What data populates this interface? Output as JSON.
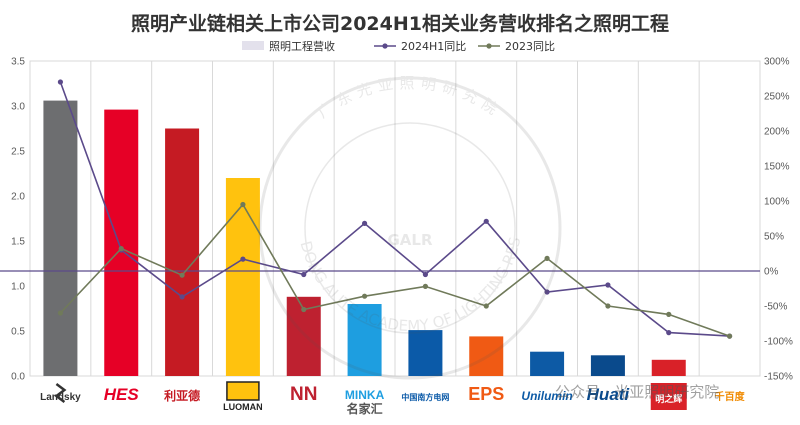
{
  "chart_data": {
    "type": "bar",
    "title": "照明产业链相关上市公司2024H1相关业务营收排名之照明工程",
    "categories": [
      "Landsky",
      "HES",
      "利亚德",
      "LUOMAN",
      "NN",
      "名家汇",
      "中国南方电网",
      "EPS",
      "Unilumin",
      "Huati",
      "明之辉",
      "千百度"
    ],
    "left_axis": {
      "ylim": [
        0,
        3.5
      ],
      "ticks": [
        "0.0",
        "0.5",
        "1.0",
        "1.5",
        "2.0",
        "2.5",
        "3.0",
        "3.5"
      ]
    },
    "right_axis": {
      "ylim": [
        -150,
        300
      ],
      "ticks": [
        "-150%",
        "-100%",
        "-50%",
        "0%",
        "50%",
        "100%",
        "150%",
        "200%",
        "250%",
        "300%"
      ]
    },
    "series": [
      {
        "name": "照明工程营收",
        "type": "bar",
        "values": [
          3.06,
          2.96,
          2.75,
          2.2,
          0.88,
          0.8,
          0.51,
          0.44,
          0.27,
          0.23,
          0.18,
          null
        ]
      },
      {
        "name": "2024H1同比",
        "type": "line",
        "axis": "right",
        "color": "#5b4a8a",
        "values": [
          270,
          30,
          -37,
          17,
          -5,
          68,
          -5,
          71,
          -30,
          -20,
          -88,
          -93
        ]
      },
      {
        "name": "2023同比",
        "type": "line",
        "axis": "right",
        "color": "#707a5a",
        "values": [
          -60,
          32,
          -6,
          95,
          -55,
          -36,
          -22,
          -50,
          18,
          -50,
          -62,
          -93
        ]
      }
    ],
    "bar_colors": [
      "#6d6e70",
      "#e60026",
      "#c51b23",
      "#ffc20e",
      "#be2130",
      "#1e9ee0",
      "#0b5aa8",
      "#f05a14",
      "#0d5aa5",
      "#0a4a8c",
      "#d92128",
      "#ffffff"
    ],
    "legend": [
      "照明工程营收",
      "2024H1同比",
      "2023同比"
    ],
    "grid": true
  },
  "logos": [
    "Landsky",
    "HES",
    "利亚德",
    "LUOMAN",
    "NN",
    "MINKA",
    "名家汇",
    "中国南方电网",
    "EPS",
    "Unilumin",
    "Huati",
    "明之辉",
    "千百度"
  ],
  "watermark": {
    "circle": "广东光亚照明研究院",
    "center": "GALR",
    "arc_en": "GUANGDONG ALITE ACADEMY OF LIGHTING RESEARCH",
    "bottom": "公众号 · 光亚照明研究院"
  }
}
